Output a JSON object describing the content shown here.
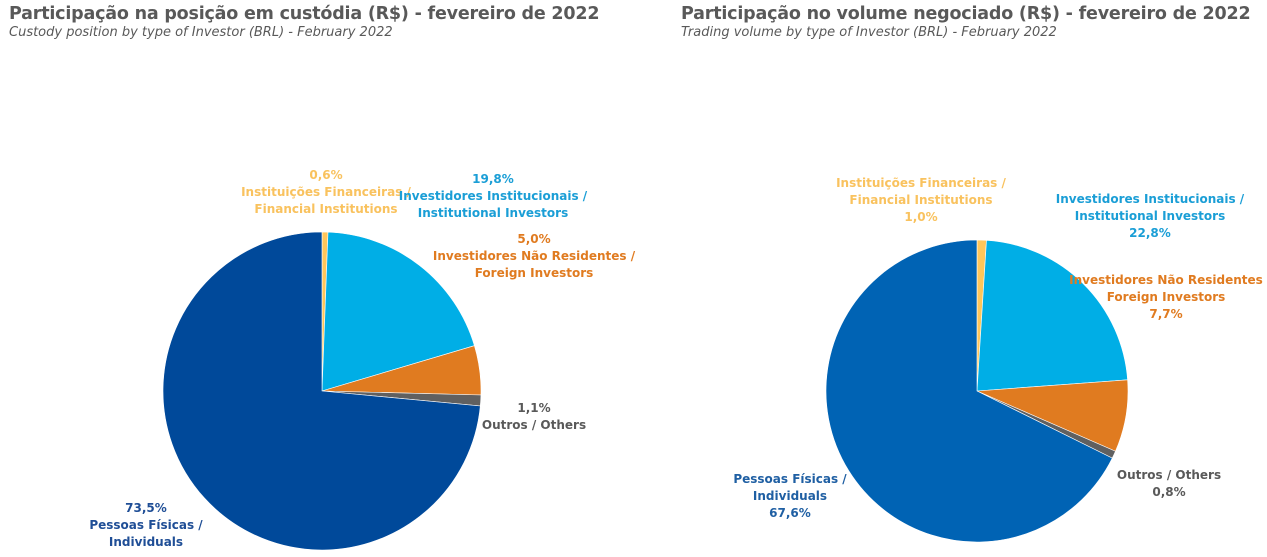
{
  "chart_data": [
    {
      "type": "pie",
      "title": "Participação na posição em custódia (R$) - fevereiro de 2022",
      "subtitle": "Custody position by type of Investor (BRL) - February 2022",
      "slices": [
        {
          "name": "Instituições Financeiras / Financial Institutions",
          "line1": "Instituições Financeiras /",
          "line2": "Financial Institutions",
          "value": 0.6,
          "label": "0,6%",
          "color": "#FFC65A",
          "text_color": "#F9C25E"
        },
        {
          "name": "Investidores Institucionais / Institutional Investors",
          "line1": "Investidores Institucionais /",
          "line2": "Institutional Investors",
          "value": 19.8,
          "label": "19,8%",
          "color": "#00AEE6",
          "text_color": "#1A9ED6"
        },
        {
          "name": "Investidores Não Residentes / Foreign Investors",
          "line1": "Investidores Não Residentes /",
          "line2": "Foreign Investors",
          "value": 5.0,
          "label": "5,0%",
          "color": "#E07B20",
          "text_color": "#E07B20"
        },
        {
          "name": "Outros / Others",
          "line1": "Outros / Others",
          "line2": "",
          "value": 1.1,
          "label": "1,1%",
          "color": "#606060",
          "text_color": "#595959"
        },
        {
          "name": "Pessoas Físicas / Individuals",
          "line1": "Pessoas Físicas /",
          "line2": "Individuals",
          "value": 73.5,
          "label": "73,5%",
          "color": "#00499A",
          "text_color": "#1F4E96"
        }
      ]
    },
    {
      "type": "pie",
      "title": "Participação no volume negociado (R$) - fevereiro de 2022",
      "subtitle": "Trading volume by type of Investor (BRL) - February 2022",
      "slices": [
        {
          "name": "Instituições Financeiras / Financial Institutions",
          "line1": "Instituições Financeiras /",
          "line2": "Financial Institutions",
          "value": 1.0,
          "label": "1,0%",
          "color": "#FFC65A",
          "text_color": "#F9C25E"
        },
        {
          "name": "Investidores Institucionais / Institutional Investors",
          "line1": "Investidores Institucionais /",
          "line2": "Institutional Investors",
          "value": 22.8,
          "label": "22,8%",
          "color": "#00AEE6",
          "text_color": "#1A9ED6"
        },
        {
          "name": "Investidores Não Residentes Foreign Investors",
          "line1": "Investidores Não Residentes",
          "line2": "Foreign Investors",
          "value": 7.7,
          "label": "7,7%",
          "color": "#E07B20",
          "text_color": "#E07B20"
        },
        {
          "name": "Outros / Others",
          "line1": "Outros / Others",
          "line2": "",
          "value": 0.8,
          "label": "0,8%",
          "color": "#606060",
          "text_color": "#595959"
        },
        {
          "name": "Pessoas Físicas / Individuals",
          "line1": "Pessoas Físicas /",
          "line2": "Individuals",
          "value": 67.6,
          "label": "67,6%",
          "color": "#0063B4",
          "text_color": "#1F5FA3"
        }
      ]
    }
  ]
}
